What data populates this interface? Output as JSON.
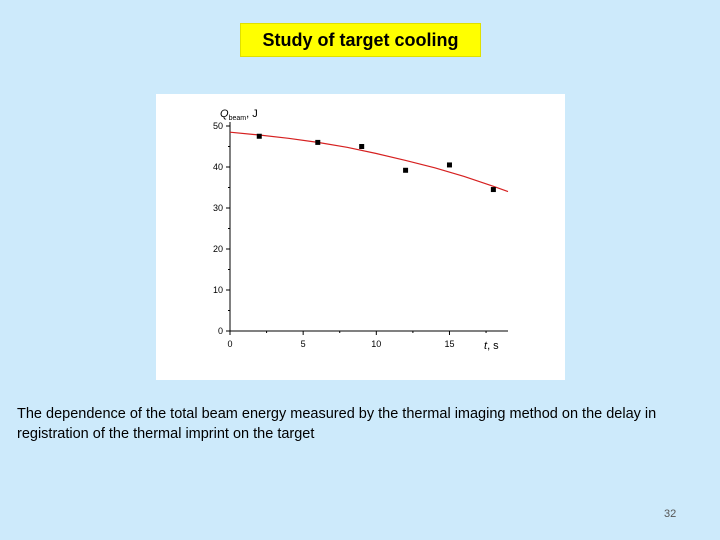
{
  "slide": {
    "title": "Study of target cooling",
    "caption": "The dependence of the  total beam energy measured by the  thermal imaging method on the delay in registration of the thermal imprint on the target",
    "page_number": "32"
  },
  "colors": {
    "background": "#cdeafb",
    "title_bg": "#ffff00",
    "fit_curve": "#d62020",
    "points": "#000000"
  },
  "chart_data": {
    "type": "scatter",
    "ylabel_main": "Q",
    "ylabel_sub": "beam",
    "ylabel_unit": ", J",
    "xlabel_main": "t",
    "xlabel_unit": ", s",
    "xlim": [
      0,
      19
    ],
    "ylim": [
      0,
      50
    ],
    "xticks": [
      0,
      5,
      10,
      15
    ],
    "yticks": [
      0,
      10,
      20,
      30,
      40,
      50
    ],
    "series": [
      {
        "x": [
          2,
          6,
          9,
          12,
          15,
          18
        ],
        "y": [
          47.5,
          46,
          45,
          39.2,
          40.5,
          34.5
        ]
      }
    ],
    "fit": {
      "x": [
        0,
        2,
        4,
        6,
        8,
        10,
        12,
        14,
        16,
        18,
        19
      ],
      "y": [
        48.5,
        47.8,
        47.0,
        46.0,
        44.8,
        43.3,
        41.6,
        39.8,
        37.7,
        35.3,
        34.0
      ]
    }
  }
}
